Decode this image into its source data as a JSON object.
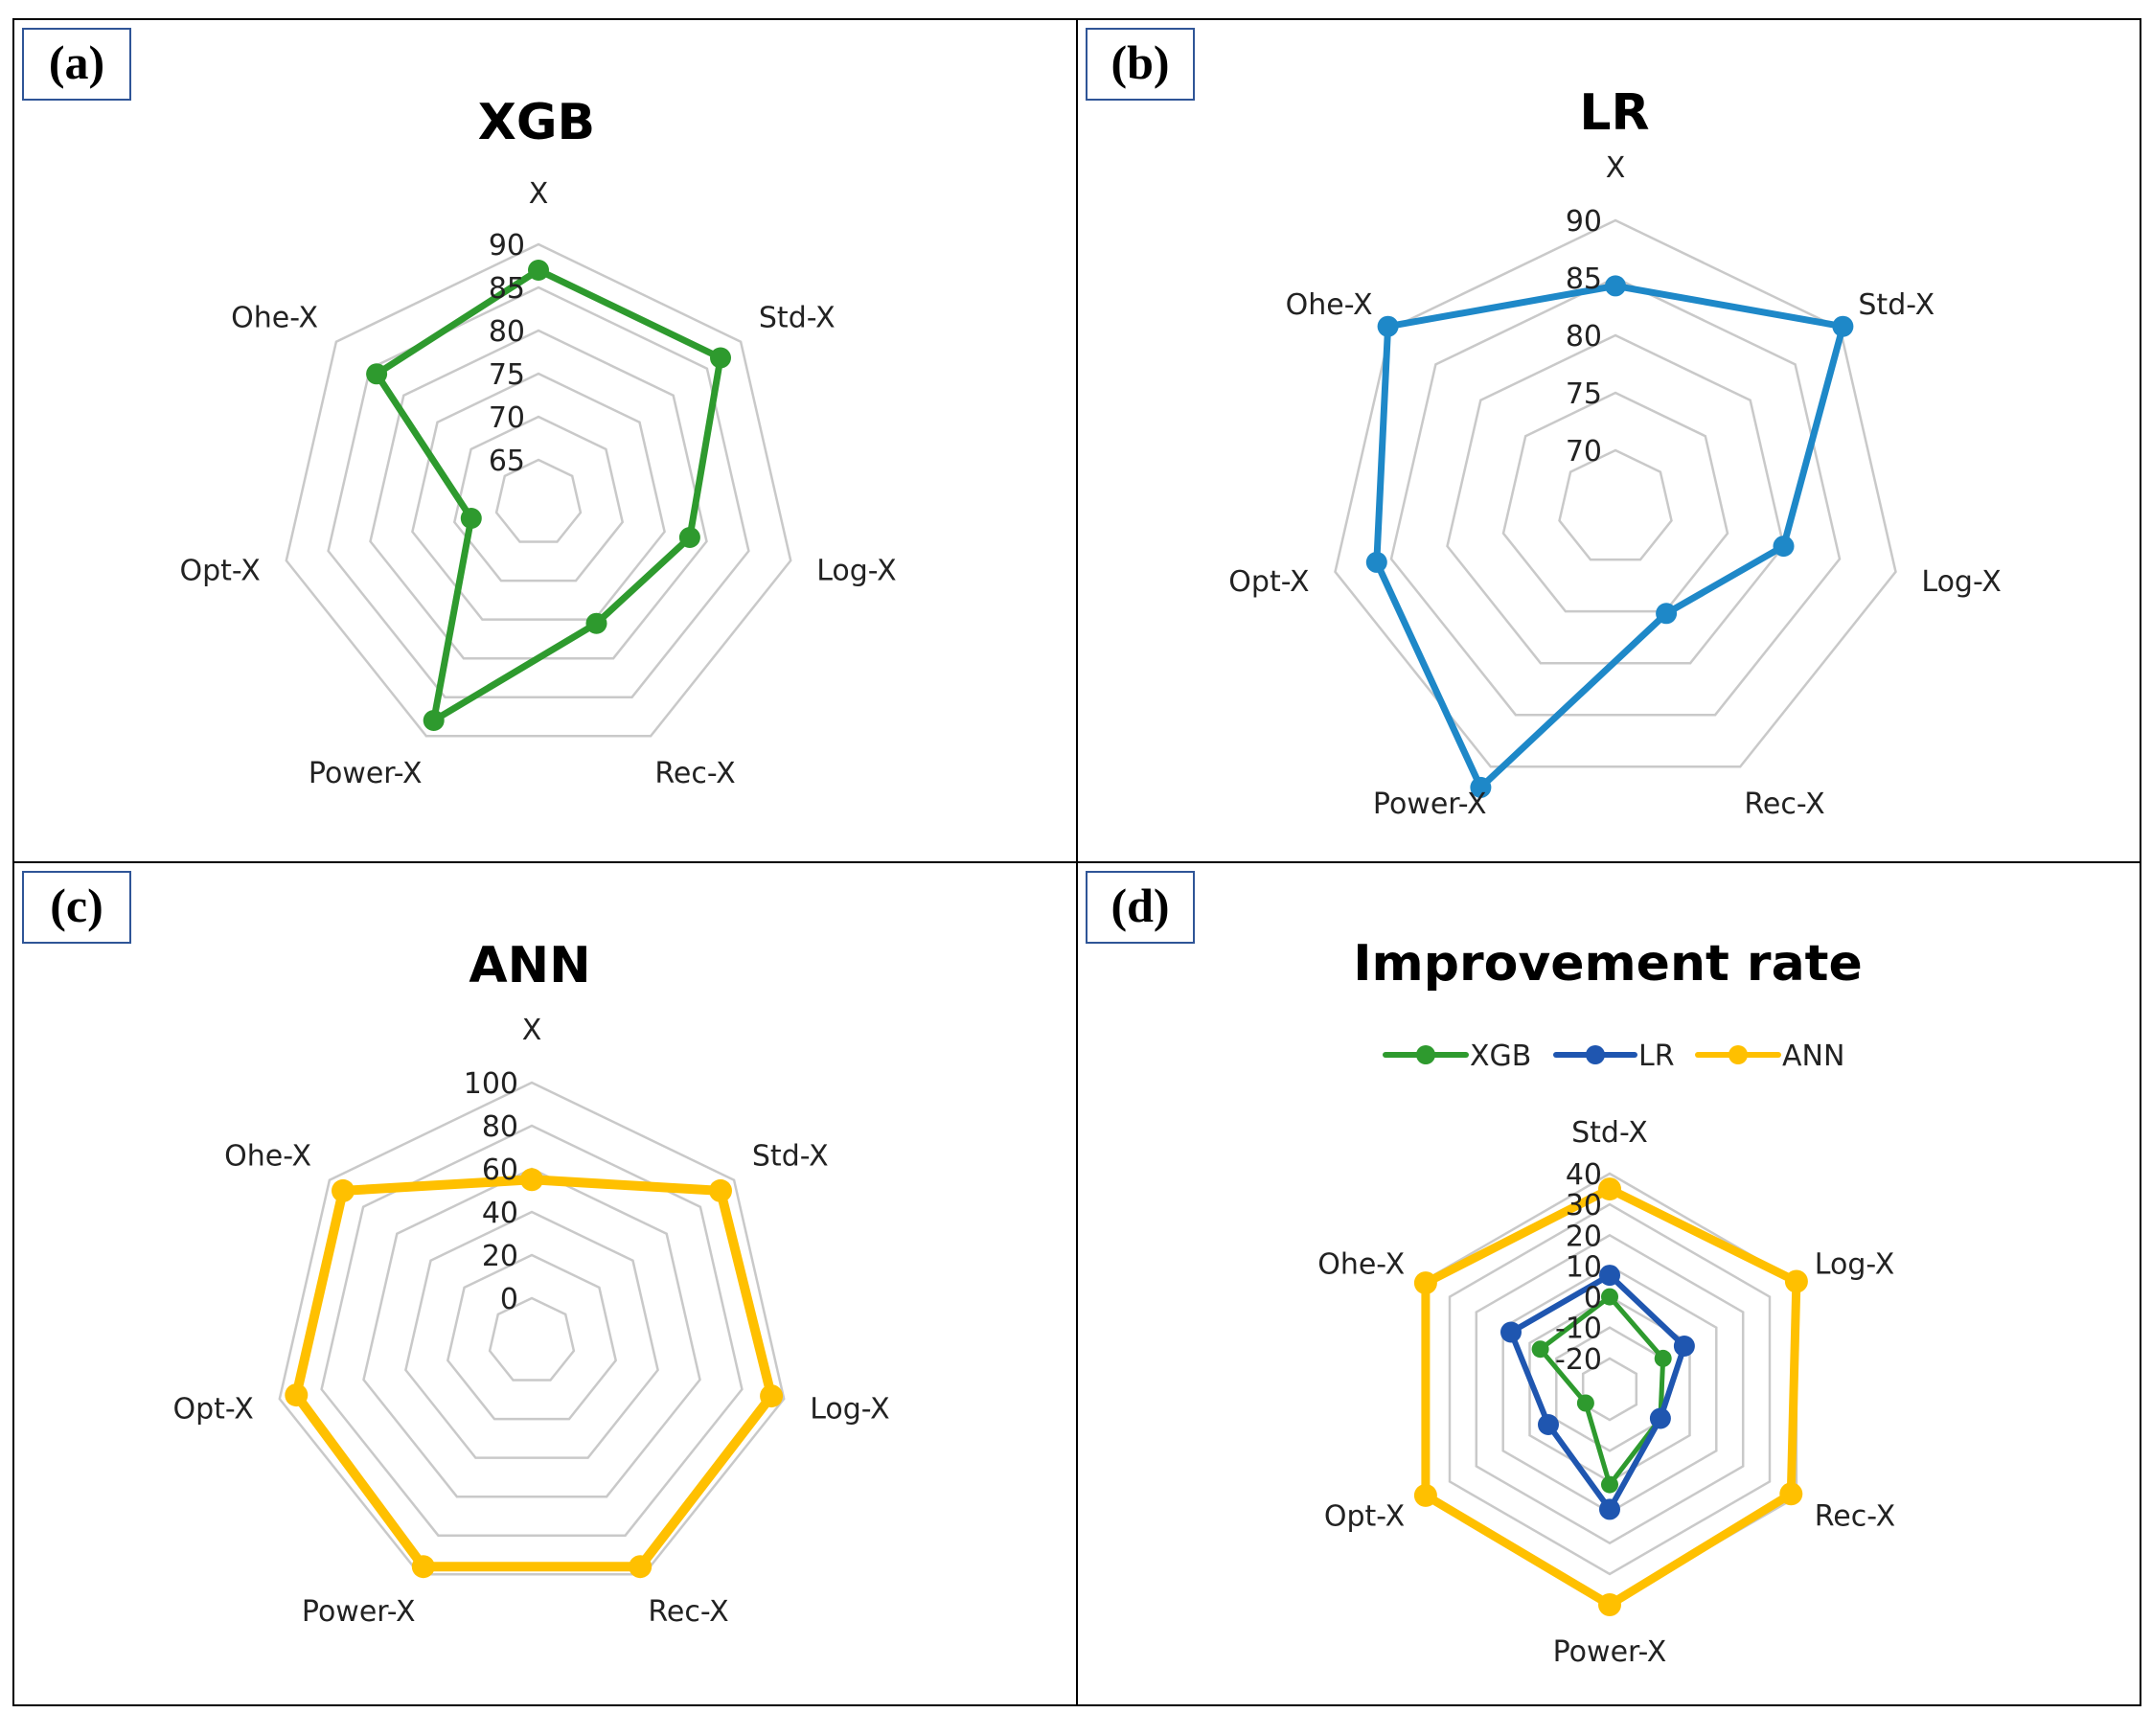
{
  "panels": [
    {
      "label": "(a)"
    },
    {
      "label": "(b)"
    },
    {
      "label": "(c)"
    },
    {
      "label": "(d)"
    }
  ],
  "colors": {
    "XGB": "#2E9A2E",
    "LR": "#1E88C8",
    "ANN": "#FFC000",
    "LR_d": "#1F56B0",
    "grid": "#C9C9C9",
    "label_box": "#2F5597"
  },
  "chart_data": [
    {
      "type": "radar",
      "title": "XGB",
      "categories": [
        "X",
        "Std-X",
        "Log-X",
        "Rec-X",
        "Power-X",
        "Opt-X",
        "Ohe-X"
      ],
      "series": [
        {
          "name": "XGB",
          "values": [
            87,
            87,
            78,
            75.5,
            88,
            68,
            84
          ]
        }
      ],
      "rmin": 60,
      "rmax": 90,
      "ticks": [
        65,
        70,
        75,
        80,
        85,
        90
      ]
    },
    {
      "type": "radar",
      "title": "LR",
      "categories": [
        "X",
        "Std-X",
        "Log-X",
        "Rec-X",
        "Power-X",
        "Opt-X",
        "Ohe-X"
      ],
      "series": [
        {
          "name": "LR",
          "values": [
            84.3,
            90.3,
            80,
            75.2,
            92,
            86.3,
            90.3
          ]
        }
      ],
      "rmin": 65,
      "rmax": 90,
      "ticks": [
        70,
        75,
        80,
        85,
        90
      ]
    },
    {
      "type": "radar",
      "title": "ANN",
      "categories": [
        "X",
        "Std-X",
        "Log-X",
        "Rec-X",
        "Power-X",
        "Opt-X",
        "Ohe-X"
      ],
      "series": [
        {
          "name": "ANN",
          "values": [
            55,
            92,
            94,
            96,
            96,
            92,
            92
          ]
        }
      ],
      "rmin": -20,
      "rmax": 100,
      "ticks": [
        0,
        20,
        40,
        60,
        80,
        100
      ]
    },
    {
      "type": "radar",
      "title": "Improvement rate",
      "categories": [
        "Std-X",
        "Log-X",
        "Rec-X",
        "Power-X",
        "Opt-X",
        "Ohe-X"
      ],
      "series": [
        {
          "name": "XGB",
          "values": [
            0,
            -10,
            -11,
            1,
            -21,
            -4
          ]
        },
        {
          "name": "LR",
          "values": [
            7,
            -2,
            -11,
            9,
            -7,
            7
          ]
        },
        {
          "name": "ANN",
          "values": [
            35,
            40,
            38,
            40,
            39,
            39
          ]
        }
      ],
      "rmin": -30,
      "rmax": 40,
      "ticks": [
        -20,
        -10,
        0,
        10,
        20,
        30,
        40
      ],
      "tick_labels": [
        "-20",
        "-10",
        "0",
        "10",
        "20",
        "30",
        "40"
      ],
      "legend": [
        "XGB",
        "LR",
        "ANN"
      ]
    }
  ]
}
